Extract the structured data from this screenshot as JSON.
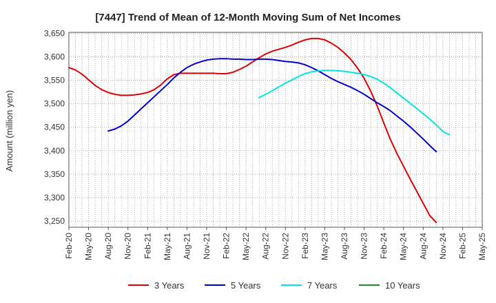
{
  "chart_data": {
    "type": "line",
    "title": "[7447]  Trend of Mean of 12-Month Moving Sum of Net Incomes",
    "xlabel": "",
    "ylabel": "Amount (million yen)",
    "ylim": [
      3237,
      3652
    ],
    "y_ticks": [
      3250,
      3300,
      3350,
      3400,
      3450,
      3500,
      3550,
      3600,
      3650
    ],
    "y_tick_labels": [
      "3,250",
      "3,300",
      "3,350",
      "3,400",
      "3,450",
      "3,500",
      "3,550",
      "3,600",
      "3,650"
    ],
    "x_tick_labels": [
      "Feb-20",
      "May-20",
      "Aug-20",
      "Nov-20",
      "Feb-21",
      "May-21",
      "Aug-21",
      "Nov-21",
      "Feb-22",
      "May-22",
      "Aug-22",
      "Nov-22",
      "Feb-23",
      "May-23",
      "Aug-23",
      "Nov-23",
      "Feb-24",
      "May-24",
      "Aug-24",
      "Nov-24",
      "Feb-25",
      "May-25"
    ],
    "grid": true,
    "legend_position": "bottom",
    "series": [
      {
        "name": "3 Years",
        "color": "#dd0000",
        "start_index": 0,
        "values": [
          3577,
          3572,
          3563,
          3551,
          3539,
          3530,
          3524,
          3520,
          3518,
          3518,
          3519,
          3521,
          3524,
          3530,
          3540,
          3553,
          3562,
          3565,
          3565,
          3565,
          3565,
          3565,
          3565,
          3564,
          3564,
          3567,
          3573,
          3580,
          3589,
          3598,
          3606,
          3612,
          3616,
          3620,
          3625,
          3631,
          3636,
          3639,
          3639,
          3636,
          3629,
          3620,
          3608,
          3594,
          3576,
          3554,
          3527,
          3495,
          3459,
          3424,
          3394,
          3367,
          3340,
          3314,
          3288,
          3262,
          3247
        ]
      },
      {
        "name": "5 Years",
        "color": "#0000cc",
        "start_index": 6,
        "values": [
          3442,
          3446,
          3453,
          3463,
          3476,
          3489,
          3502,
          3515,
          3528,
          3541,
          3555,
          3567,
          3577,
          3584,
          3589,
          3593,
          3595,
          3596,
          3596,
          3595,
          3595,
          3594,
          3594,
          3595,
          3595,
          3594,
          3592,
          3590,
          3589,
          3587,
          3583,
          3577,
          3570,
          3562,
          3554,
          3547,
          3541,
          3535,
          3528,
          3520,
          3511,
          3502,
          3494,
          3485,
          3474,
          3463,
          3451,
          3438,
          3425,
          3411,
          3398
        ]
      },
      {
        "name": "7 Years",
        "color": "#00e5e5",
        "start_index": 29,
        "values": [
          3513,
          3520,
          3528,
          3536,
          3544,
          3551,
          3558,
          3564,
          3568,
          3570,
          3571,
          3571,
          3570,
          3569,
          3567,
          3565,
          3562,
          3558,
          3552,
          3544,
          3534,
          3523,
          3512,
          3501,
          3490,
          3479,
          3467,
          3455,
          3441,
          3434
        ]
      },
      {
        "name": "10 Years",
        "color": "#228b22",
        "start_index": 0,
        "values": []
      }
    ]
  }
}
